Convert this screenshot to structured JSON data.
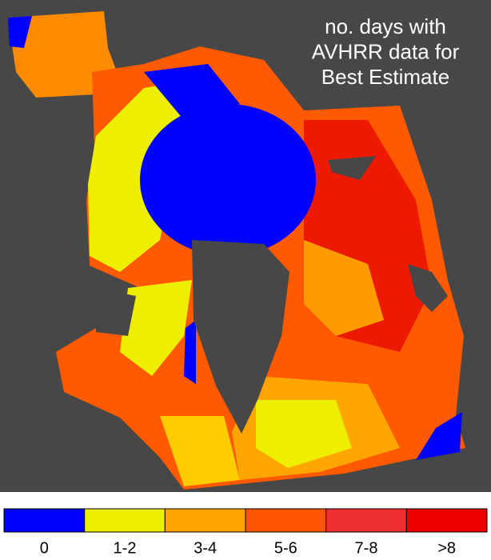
{
  "title": [
    "no. days with",
    "AVHRR data for",
    "Best Estimate"
  ],
  "legend": [
    {
      "label": "0",
      "color": "#0000ff"
    },
    {
      "label": "1-2",
      "color": "#eeee00"
    },
    {
      "label": "3-4",
      "color": "#ffa500"
    },
    {
      "label": "5-6",
      "color": "#ff5500"
    },
    {
      "label": "7-8",
      "color": "#f03030"
    },
    {
      "label": ">8",
      "color": "#ee0000"
    }
  ]
}
